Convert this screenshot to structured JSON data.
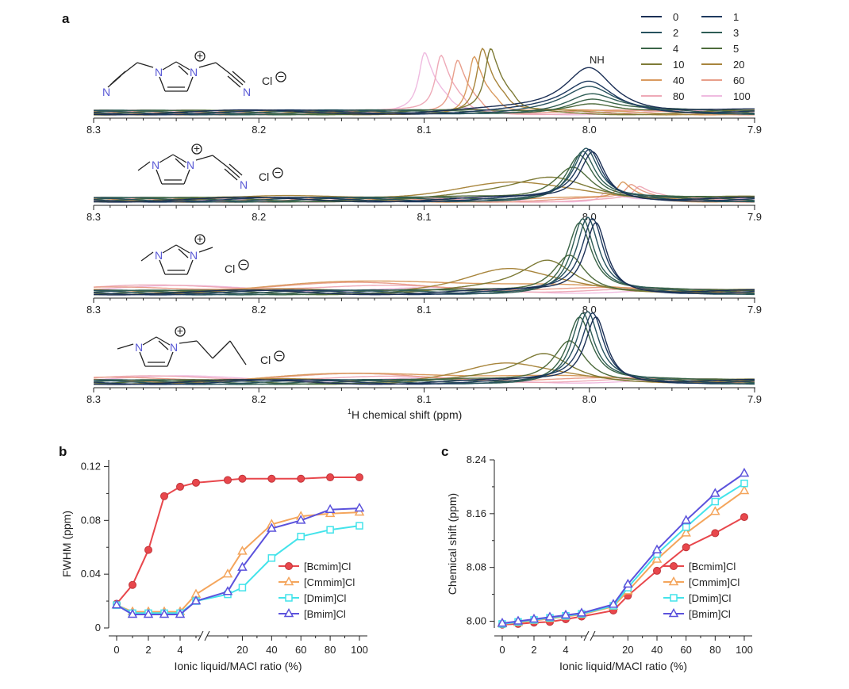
{
  "figure": {
    "panel_a_label": "a",
    "panel_b_label": "b",
    "panel_c_label": "c",
    "nh_label": "NH",
    "anion_label": "Cl",
    "nitrogen_label": "N",
    "plus_symbol": "+",
    "minus_symbol": "−"
  },
  "chart_data": [
    {
      "type": "line",
      "panel": "a",
      "title": "",
      "xlabel_sup": "1",
      "xlabel": "H  chemical shift (ppm)",
      "xlim": [
        8.3,
        7.9
      ],
      "x_ticks": [
        "8.3",
        "8.2",
        "8.1",
        "8.0",
        "7.9"
      ],
      "legend_title": "Ionic liquid/MACl ratio (%)",
      "legend": [
        {
          "label": "0",
          "color": "#1b2f55"
        },
        {
          "label": "1",
          "color": "#1e3a5f"
        },
        {
          "label": "2",
          "color": "#27525e"
        },
        {
          "label": "3",
          "color": "#2f5d55"
        },
        {
          "label": "4",
          "color": "#3a6447"
        },
        {
          "label": "5",
          "color": "#4e6b3c"
        },
        {
          "label": "10",
          "color": "#7d7a36"
        },
        {
          "label": "20",
          "color": "#a8853c"
        },
        {
          "label": "40",
          "color": "#d99a5f"
        },
        {
          "label": "60",
          "color": "#e89e8a"
        },
        {
          "label": "80",
          "color": "#eea9b7"
        },
        {
          "label": "100",
          "color": "#efbbe0"
        }
      ],
      "spectra_peak_ppm": [
        {
          "ionic_liquid": "[Bcmim]Cl",
          "peaks": [
            8.0,
            8.0,
            8.0,
            7.999,
            7.999,
            7.999,
            8.06,
            8.065,
            8.07,
            8.08,
            8.09,
            8.1
          ]
        },
        {
          "ionic_liquid": "[Cmmim]Cl",
          "peaks": [
            7.998,
            8.0,
            8.002,
            8.004,
            8.006,
            8.01,
            8.022,
            8.05,
            7.98,
            7.975,
            7.97,
            7.99
          ]
        },
        {
          "ionic_liquid": "[Dmim]Cl",
          "peaks": [
            7.996,
            7.998,
            8.001,
            8.004,
            8.006,
            8.012,
            8.025,
            8.05,
            8.1,
            8.15,
            8.2,
            8.25
          ]
        },
        {
          "ionic_liquid": "[Bmim]Cl",
          "peaks": [
            7.996,
            7.998,
            8.001,
            8.004,
            8.006,
            8.012,
            8.027,
            8.052,
            8.1,
            8.15,
            8.2,
            8.25
          ]
        }
      ]
    },
    {
      "type": "line",
      "panel": "b",
      "xlabel": "Ionic liquid/MACl ratio (%)",
      "ylabel": "FWHM (ppm)",
      "ylim": [
        0,
        0.125
      ],
      "y_ticks": [
        "0",
        "0.04",
        "0.08",
        "0.12"
      ],
      "x_ticks_left": [
        "0",
        "2",
        "4"
      ],
      "x_ticks_right": [
        "20",
        "40",
        "60",
        "80",
        "100"
      ],
      "x": [
        0,
        1,
        2,
        3,
        4,
        5,
        10,
        20,
        40,
        60,
        80,
        100
      ],
      "series": [
        {
          "name": "[Bcmim]Cl",
          "color": "#e8474c",
          "marker": "filled-circle",
          "values": [
            0.018,
            0.032,
            0.058,
            0.098,
            0.105,
            0.108,
            0.11,
            0.111,
            0.111,
            0.111,
            0.112,
            0.112
          ]
        },
        {
          "name": "[Cmmim]Cl",
          "color": "#f4a55c",
          "marker": "open-triangle",
          "values": [
            0.017,
            0.012,
            0.012,
            0.012,
            0.012,
            0.025,
            0.04,
            0.057,
            0.077,
            0.083,
            0.085,
            0.086
          ]
        },
        {
          "name": "[Dmim]Cl",
          "color": "#43e3ea",
          "marker": "open-square",
          "values": [
            0.017,
            0.011,
            0.011,
            0.011,
            0.011,
            0.02,
            0.025,
            0.03,
            0.052,
            0.068,
            0.073,
            0.076
          ]
        },
        {
          "name": "[Bmim]Cl",
          "color": "#5b52dc",
          "marker": "open-triangle",
          "values": [
            0.017,
            0.01,
            0.01,
            0.01,
            0.01,
            0.02,
            0.027,
            0.045,
            0.074,
            0.08,
            0.088,
            0.089
          ]
        }
      ]
    },
    {
      "type": "line",
      "panel": "c",
      "xlabel": "Ionic liquid/MACl ratio (%)",
      "ylabel": "Chemical shift (ppm)",
      "ylim": [
        7.99,
        8.24
      ],
      "y_ticks": [
        "8.00",
        "8.08",
        "8.16",
        "8.24"
      ],
      "x_ticks_left": [
        "0",
        "2",
        "4"
      ],
      "x_ticks_right": [
        "20",
        "40",
        "60",
        "80",
        "100"
      ],
      "x": [
        0,
        1,
        2,
        3,
        4,
        5,
        10,
        20,
        40,
        60,
        80,
        100
      ],
      "series": [
        {
          "name": "[Bcmim]Cl",
          "color": "#e8474c",
          "marker": "filled-circle",
          "values": [
            7.995,
            7.996,
            7.998,
            7.999,
            8.003,
            8.007,
            8.016,
            8.038,
            8.075,
            8.11,
            8.131,
            8.155
          ]
        },
        {
          "name": "[Cmmim]Cl",
          "color": "#f4a55c",
          "marker": "open-triangle",
          "values": [
            7.996,
            7.998,
            8.001,
            8.004,
            8.007,
            8.01,
            8.022,
            8.045,
            8.092,
            8.131,
            8.163,
            8.194
          ]
        },
        {
          "name": "[Dmim]Cl",
          "color": "#43e3ea",
          "marker": "open-square",
          "values": [
            7.996,
            7.999,
            8.002,
            8.005,
            8.008,
            8.011,
            8.023,
            8.05,
            8.1,
            8.14,
            8.178,
            8.205
          ]
        },
        {
          "name": "[Bmim]Cl",
          "color": "#5b52dc",
          "marker": "open-triangle",
          "values": [
            7.997,
            8.0,
            8.003,
            8.006,
            8.009,
            8.012,
            8.025,
            8.055,
            8.106,
            8.15,
            8.19,
            8.22
          ]
        }
      ]
    }
  ]
}
